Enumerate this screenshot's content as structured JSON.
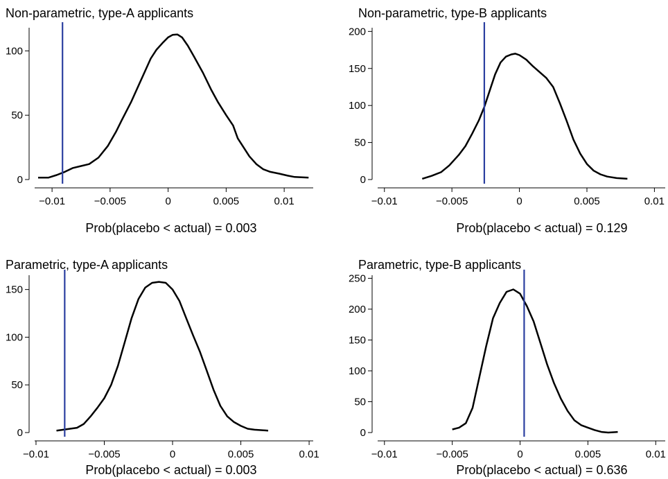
{
  "chart_data": [
    {
      "type": "line",
      "title": "Non-parametric, type-A applicants",
      "caption": "Prob(placebo < actual) = 0.003",
      "xlim": [
        -0.0115,
        0.0125
      ],
      "ylim": [
        0,
        118
      ],
      "xticks": [
        -0.01,
        -0.005,
        0,
        0.005,
        0.01
      ],
      "xtick_labels": [
        "−0.01",
        "−0.005",
        "0",
        "0.005",
        "0.01"
      ],
      "yticks": [
        0,
        50,
        100
      ],
      "ytick_labels": [
        "0",
        "50",
        "100"
      ],
      "actual": -0.0091,
      "density": [
        [
          -0.0112,
          1.5
        ],
        [
          -0.0103,
          1.5
        ],
        [
          -0.0096,
          3.5
        ],
        [
          -0.0089,
          6
        ],
        [
          -0.0082,
          9
        ],
        [
          -0.0075,
          10.5
        ],
        [
          -0.0068,
          12
        ],
        [
          -0.006,
          17
        ],
        [
          -0.0052,
          26
        ],
        [
          -0.0045,
          37
        ],
        [
          -0.004,
          46
        ],
        [
          -0.0032,
          60
        ],
        [
          -0.0025,
          74
        ],
        [
          -0.002,
          84
        ],
        [
          -0.0015,
          94
        ],
        [
          -0.001,
          101
        ],
        [
          -0.0005,
          106
        ],
        [
          0,
          110.5
        ],
        [
          0.0004,
          112.5
        ],
        [
          0.0008,
          112.8
        ],
        [
          0.0012,
          110.5
        ],
        [
          0.0017,
          104
        ],
        [
          0.0022,
          96
        ],
        [
          0.003,
          83
        ],
        [
          0.0037,
          70
        ],
        [
          0.0043,
          60
        ],
        [
          0.005,
          50
        ],
        [
          0.0056,
          42
        ],
        [
          0.006,
          32
        ],
        [
          0.0065,
          25
        ],
        [
          0.007,
          18
        ],
        [
          0.0076,
          12
        ],
        [
          0.0082,
          8
        ],
        [
          0.0088,
          6
        ],
        [
          0.0096,
          4.5
        ],
        [
          0.0103,
          3
        ],
        [
          0.0109,
          2
        ],
        [
          0.0121,
          1.5
        ]
      ]
    },
    {
      "type": "line",
      "title": "Non-parametric, type-B applicants",
      "caption": "Prob(placebo < actual) = 0.129",
      "xlim": [
        -0.0105,
        0.0108
      ],
      "ylim": [
        0,
        205
      ],
      "xticks": [
        -0.01,
        -0.005,
        0,
        0.005,
        0.01
      ],
      "xtick_labels": [
        "−0.01",
        "−0.005",
        "0",
        "0.005",
        "0.01"
      ],
      "yticks": [
        0,
        50,
        100,
        150,
        200
      ],
      "ytick_labels": [
        "0",
        "50",
        "100",
        "150",
        "200"
      ],
      "actual": -0.0026,
      "density": [
        [
          -0.0072,
          1
        ],
        [
          -0.0065,
          5
        ],
        [
          -0.0058,
          10
        ],
        [
          -0.0052,
          19
        ],
        [
          -0.0045,
          33
        ],
        [
          -0.004,
          45
        ],
        [
          -0.0035,
          62
        ],
        [
          -0.003,
          80
        ],
        [
          -0.0026,
          98
        ],
        [
          -0.0022,
          120
        ],
        [
          -0.0018,
          142
        ],
        [
          -0.0014,
          158
        ],
        [
          -0.001,
          166
        ],
        [
          -0.0006,
          169
        ],
        [
          -0.0003,
          170
        ],
        [
          0,
          168
        ],
        [
          0.0005,
          162
        ],
        [
          0.001,
          153
        ],
        [
          0.0015,
          145
        ],
        [
          0.002,
          137
        ],
        [
          0.0025,
          125
        ],
        [
          0.003,
          103
        ],
        [
          0.0035,
          79
        ],
        [
          0.004,
          54
        ],
        [
          0.0045,
          35
        ],
        [
          0.005,
          21
        ],
        [
          0.0055,
          12
        ],
        [
          0.006,
          7
        ],
        [
          0.0065,
          4
        ],
        [
          0.0072,
          2
        ],
        [
          0.008,
          1
        ]
      ]
    },
    {
      "type": "line",
      "title": "Parametric, type-A applicants",
      "caption": "Prob(placebo < actual) = 0.003",
      "xlim": [
        -0.0101,
        0.0103
      ],
      "ylim": [
        0,
        165
      ],
      "xticks": [
        -0.01,
        -0.005,
        0,
        0.005,
        0.01
      ],
      "xtick_labels": [
        "−0.01",
        "−0.005",
        "0",
        "0.005",
        "0.01"
      ],
      "yticks": [
        0,
        50,
        100,
        150
      ],
      "ytick_labels": [
        "0",
        "50",
        "100",
        "150"
      ],
      "actual": -0.0079,
      "density": [
        [
          -0.0085,
          2
        ],
        [
          -0.008,
          3
        ],
        [
          -0.0075,
          4
        ],
        [
          -0.007,
          5
        ],
        [
          -0.0065,
          9
        ],
        [
          -0.006,
          17
        ],
        [
          -0.0055,
          26
        ],
        [
          -0.005,
          36
        ],
        [
          -0.0045,
          50
        ],
        [
          -0.004,
          70
        ],
        [
          -0.0035,
          95
        ],
        [
          -0.003,
          120
        ],
        [
          -0.0025,
          140
        ],
        [
          -0.002,
          152
        ],
        [
          -0.0015,
          157
        ],
        [
          -0.001,
          158
        ],
        [
          -0.0005,
          157
        ],
        [
          0,
          150
        ],
        [
          0.0005,
          138
        ],
        [
          0.001,
          120
        ],
        [
          0.0015,
          102
        ],
        [
          0.002,
          85
        ],
        [
          0.0025,
          65
        ],
        [
          0.003,
          45
        ],
        [
          0.0035,
          28
        ],
        [
          0.004,
          17
        ],
        [
          0.0045,
          11
        ],
        [
          0.005,
          7
        ],
        [
          0.0055,
          4
        ],
        [
          0.006,
          3
        ],
        [
          0.007,
          2
        ]
      ]
    },
    {
      "type": "line",
      "title": "Parametric, type-B applicants",
      "caption": "Prob(placebo < actual) = 0.636",
      "xlim": [
        -0.0105,
        0.0107
      ],
      "ylim": [
        0,
        255
      ],
      "xticks": [
        -0.01,
        -0.005,
        0,
        0.005,
        0.01
      ],
      "xtick_labels": [
        "−0.01",
        "−0.005",
        "0",
        "0.005",
        "0.01"
      ],
      "yticks": [
        0,
        50,
        100,
        150,
        200,
        250
      ],
      "ytick_labels": [
        "0",
        "50",
        "100",
        "150",
        "200",
        "250"
      ],
      "actual": 0.0003,
      "density": [
        [
          -0.005,
          5
        ],
        [
          -0.0045,
          8
        ],
        [
          -0.004,
          15
        ],
        [
          -0.0035,
          40
        ],
        [
          -0.003,
          90
        ],
        [
          -0.0025,
          140
        ],
        [
          -0.002,
          185
        ],
        [
          -0.0015,
          210
        ],
        [
          -0.001,
          228
        ],
        [
          -0.0005,
          232
        ],
        [
          0,
          225
        ],
        [
          0.0005,
          205
        ],
        [
          0.001,
          180
        ],
        [
          0.0015,
          145
        ],
        [
          0.002,
          110
        ],
        [
          0.0025,
          80
        ],
        [
          0.003,
          55
        ],
        [
          0.0035,
          35
        ],
        [
          0.004,
          20
        ],
        [
          0.0045,
          12
        ],
        [
          0.005,
          8
        ],
        [
          0.0055,
          4
        ],
        [
          0.006,
          1
        ],
        [
          0.0065,
          0
        ],
        [
          0.0072,
          1
        ]
      ]
    }
  ],
  "colors": {
    "density": "#000000",
    "actual_line": "#2b3fa0",
    "axis": "#000000"
  }
}
